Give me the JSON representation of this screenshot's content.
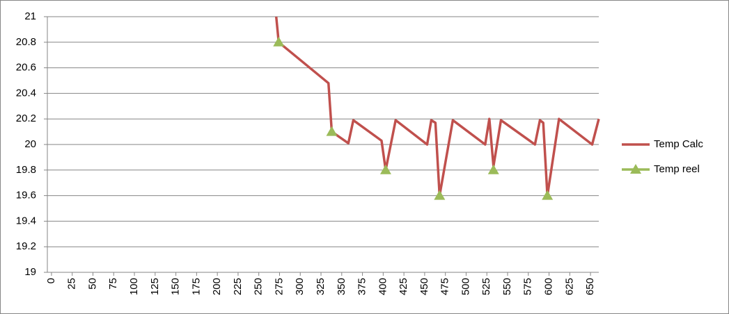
{
  "chart_data": {
    "type": "line",
    "xlim": [
      -5,
      660
    ],
    "xticks": [
      0,
      25,
      50,
      75,
      100,
      125,
      150,
      175,
      200,
      225,
      250,
      275,
      300,
      325,
      350,
      375,
      400,
      425,
      450,
      475,
      500,
      525,
      550,
      575,
      600,
      625,
      650
    ],
    "ylim": [
      19,
      21
    ],
    "yticks": [
      19,
      19.2,
      19.4,
      19.6,
      19.8,
      20,
      20.2,
      20.4,
      20.6,
      20.8,
      21
    ],
    "grid": true,
    "legend": "right",
    "series": [
      {
        "name": "Temp Calc",
        "color": "#c0504d",
        "marker": "none",
        "x": [
          271,
          274,
          334,
          338,
          358,
          364,
          398,
          403,
          415,
          453,
          458,
          463,
          468,
          484,
          523,
          528,
          533,
          542,
          583,
          589,
          593,
          598,
          612,
          652,
          660
        ],
        "values": [
          21,
          20.8,
          20.48,
          20.1,
          20.01,
          20.19,
          20.03,
          19.8,
          20.19,
          20,
          20.19,
          20.17,
          19.6,
          20.19,
          20,
          20.2,
          19.83,
          20.19,
          20,
          20.19,
          20.17,
          19.6,
          20.2,
          20,
          20.2
        ]
      },
      {
        "name": "Temp reel",
        "color": "#9bbb59",
        "marker": "triangle",
        "x": [
          274,
          338,
          403,
          468,
          533,
          598
        ],
        "values": [
          20.8,
          20.1,
          19.8,
          19.6,
          19.8,
          19.6
        ]
      }
    ]
  }
}
